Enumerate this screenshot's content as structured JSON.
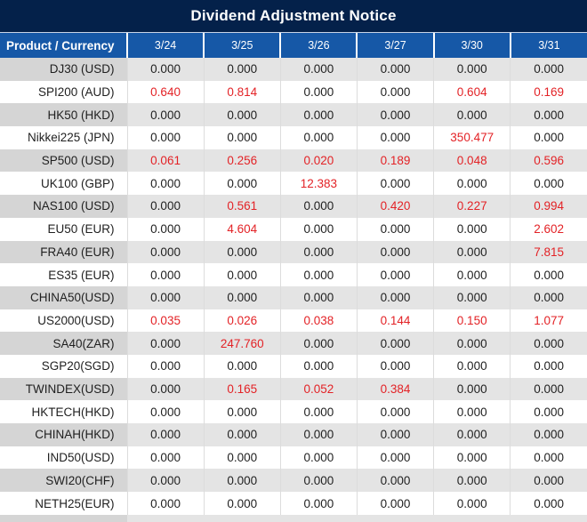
{
  "title": "Dividend Adjustment Notice",
  "colors": {
    "title_bar_bg": "#04214a",
    "header_row_bg": "#1658a7",
    "header_text": "#ffffff",
    "alt_row_product_bg": "#d5d5d5",
    "alt_row_value_bg": "#e4e4e4",
    "value_text": "#1f1f1f",
    "dividend_red": "#e32226"
  },
  "table": {
    "product_header": "Product / Currency",
    "date_columns": [
      "3/24",
      "3/25",
      "3/26",
      "3/27",
      "3/30",
      "3/31"
    ],
    "rows": [
      {
        "product": "DJ30 (USD)",
        "values": [
          "0.000",
          "0.000",
          "0.000",
          "0.000",
          "0.000",
          "0.000"
        ],
        "red": [
          false,
          false,
          false,
          false,
          false,
          false
        ]
      },
      {
        "product": "SPI200 (AUD)",
        "values": [
          "0.640",
          "0.814",
          "0.000",
          "0.000",
          "0.604",
          "0.169"
        ],
        "red": [
          true,
          true,
          false,
          false,
          true,
          true
        ]
      },
      {
        "product": "HK50 (HKD)",
        "values": [
          "0.000",
          "0.000",
          "0.000",
          "0.000",
          "0.000",
          "0.000"
        ],
        "red": [
          false,
          false,
          false,
          false,
          false,
          false
        ]
      },
      {
        "product": "Nikkei225 (JPN)",
        "values": [
          "0.000",
          "0.000",
          "0.000",
          "0.000",
          "350.477",
          "0.000"
        ],
        "red": [
          false,
          false,
          false,
          false,
          true,
          false
        ]
      },
      {
        "product": "SP500 (USD)",
        "values": [
          "0.061",
          "0.256",
          "0.020",
          "0.189",
          "0.048",
          "0.596"
        ],
        "red": [
          true,
          true,
          true,
          true,
          true,
          true
        ]
      },
      {
        "product": "UK100 (GBP)",
        "values": [
          "0.000",
          "0.000",
          "12.383",
          "0.000",
          "0.000",
          "0.000"
        ],
        "red": [
          false,
          false,
          true,
          false,
          false,
          false
        ]
      },
      {
        "product": "NAS100 (USD)",
        "values": [
          "0.000",
          "0.561",
          "0.000",
          "0.420",
          "0.227",
          "0.994"
        ],
        "red": [
          false,
          true,
          false,
          true,
          true,
          true
        ]
      },
      {
        "product": "EU50 (EUR)",
        "values": [
          "0.000",
          "4.604",
          "0.000",
          "0.000",
          "0.000",
          "2.602"
        ],
        "red": [
          false,
          true,
          false,
          false,
          false,
          true
        ]
      },
      {
        "product": "FRA40 (EUR)",
        "values": [
          "0.000",
          "0.000",
          "0.000",
          "0.000",
          "0.000",
          "7.815"
        ],
        "red": [
          false,
          false,
          false,
          false,
          false,
          true
        ]
      },
      {
        "product": "ES35 (EUR)",
        "values": [
          "0.000",
          "0.000",
          "0.000",
          "0.000",
          "0.000",
          "0.000"
        ],
        "red": [
          false,
          false,
          false,
          false,
          false,
          false
        ]
      },
      {
        "product": "CHINA50(USD)",
        "values": [
          "0.000",
          "0.000",
          "0.000",
          "0.000",
          "0.000",
          "0.000"
        ],
        "red": [
          false,
          false,
          false,
          false,
          false,
          false
        ]
      },
      {
        "product": "US2000(USD)",
        "values": [
          "0.035",
          "0.026",
          "0.038",
          "0.144",
          "0.150",
          "1.077"
        ],
        "red": [
          true,
          true,
          true,
          true,
          true,
          true
        ]
      },
      {
        "product": "SA40(ZAR)",
        "values": [
          "0.000",
          "247.760",
          "0.000",
          "0.000",
          "0.000",
          "0.000"
        ],
        "red": [
          false,
          true,
          false,
          false,
          false,
          false
        ]
      },
      {
        "product": "SGP20(SGD)",
        "values": [
          "0.000",
          "0.000",
          "0.000",
          "0.000",
          "0.000",
          "0.000"
        ],
        "red": [
          false,
          false,
          false,
          false,
          false,
          false
        ]
      },
      {
        "product": "TWINDEX(USD)",
        "values": [
          "0.000",
          "0.165",
          "0.052",
          "0.384",
          "0.000",
          "0.000"
        ],
        "red": [
          false,
          true,
          true,
          true,
          false,
          false
        ]
      },
      {
        "product": "HKTECH(HKD)",
        "values": [
          "0.000",
          "0.000",
          "0.000",
          "0.000",
          "0.000",
          "0.000"
        ],
        "red": [
          false,
          false,
          false,
          false,
          false,
          false
        ]
      },
      {
        "product": "CHINAH(HKD)",
        "values": [
          "0.000",
          "0.000",
          "0.000",
          "0.000",
          "0.000",
          "0.000"
        ],
        "red": [
          false,
          false,
          false,
          false,
          false,
          false
        ]
      },
      {
        "product": "IND50(USD)",
        "values": [
          "0.000",
          "0.000",
          "0.000",
          "0.000",
          "0.000",
          "0.000"
        ],
        "red": [
          false,
          false,
          false,
          false,
          false,
          false
        ]
      },
      {
        "product": "SWI20(CHF)",
        "values": [
          "0.000",
          "0.000",
          "0.000",
          "0.000",
          "0.000",
          "0.000"
        ],
        "red": [
          false,
          false,
          false,
          false,
          false,
          false
        ]
      },
      {
        "product": "NETH25(EUR)",
        "values": [
          "0.000",
          "0.000",
          "0.000",
          "0.000",
          "0.000",
          "0.000"
        ],
        "red": [
          false,
          false,
          false,
          false,
          false,
          false
        ]
      }
    ]
  }
}
